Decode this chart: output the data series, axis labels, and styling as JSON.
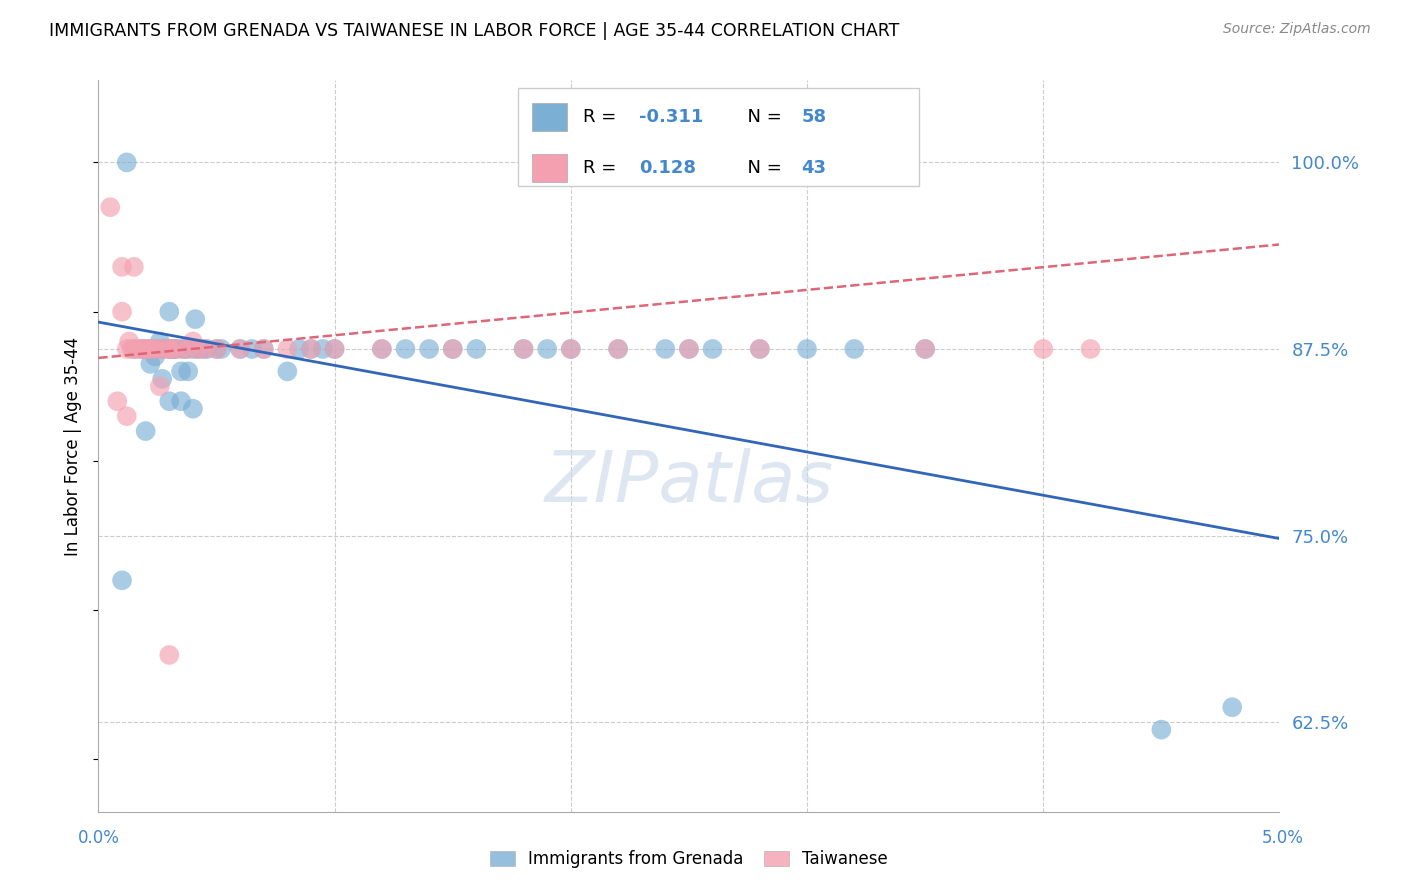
{
  "title": "IMMIGRANTS FROM GRENADA VS TAIWANESE IN LABOR FORCE | AGE 35-44 CORRELATION CHART",
  "source": "Source: ZipAtlas.com",
  "ylabel": "In Labor Force | Age 35-44",
  "yticks": [
    0.625,
    0.75,
    0.875,
    1.0
  ],
  "ytick_labels": [
    "62.5%",
    "75.0%",
    "87.5%",
    "100.0%"
  ],
  "xlim": [
    0.0,
    0.05
  ],
  "ylim": [
    0.565,
    1.055
  ],
  "color_blue": "#7BAFD4",
  "color_pink": "#F4A0B0",
  "color_blue_line": "#3366BB",
  "color_pink_line": "#DD6677",
  "color_axis_label": "#4488CC",
  "color_grid": "#CCCCCC",
  "blue_x": [
    0.0012,
    0.0015,
    0.0018,
    0.002,
    0.0022,
    0.0022,
    0.0024,
    0.0025,
    0.0026,
    0.0028,
    0.003,
    0.003,
    0.0031,
    0.0032,
    0.0033,
    0.0035,
    0.0036,
    0.0037,
    0.004,
    0.0041,
    0.0042,
    0.0044,
    0.0046,
    0.005,
    0.0052,
    0.006,
    0.0065,
    0.007,
    0.008,
    0.009,
    0.0095,
    0.01,
    0.012,
    0.013,
    0.014,
    0.015,
    0.016,
    0.018,
    0.019,
    0.02,
    0.022,
    0.024,
    0.025,
    0.026,
    0.028,
    0.03,
    0.032,
    0.035,
    0.001,
    0.002,
    0.003,
    0.0035,
    0.004,
    0.0085,
    0.045,
    0.048,
    0.0027,
    0.0038
  ],
  "blue_y": [
    1.0,
    0.875,
    0.875,
    0.875,
    0.875,
    0.865,
    0.87,
    0.875,
    0.88,
    0.875,
    0.875,
    0.9,
    0.875,
    0.875,
    0.875,
    0.86,
    0.875,
    0.875,
    0.875,
    0.895,
    0.875,
    0.875,
    0.875,
    0.875,
    0.875,
    0.875,
    0.875,
    0.875,
    0.86,
    0.875,
    0.875,
    0.875,
    0.875,
    0.875,
    0.875,
    0.875,
    0.875,
    0.875,
    0.875,
    0.875,
    0.875,
    0.875,
    0.875,
    0.875,
    0.875,
    0.875,
    0.875,
    0.875,
    0.72,
    0.82,
    0.84,
    0.84,
    0.835,
    0.875,
    0.62,
    0.635,
    0.855,
    0.86
  ],
  "pink_x": [
    0.0005,
    0.001,
    0.001,
    0.0012,
    0.0013,
    0.0014,
    0.0015,
    0.0016,
    0.0018,
    0.002,
    0.002,
    0.0022,
    0.0023,
    0.0025,
    0.0026,
    0.0027,
    0.003,
    0.003,
    0.0032,
    0.0035,
    0.0038,
    0.004,
    0.0042,
    0.0045,
    0.005,
    0.006,
    0.007,
    0.008,
    0.009,
    0.01,
    0.012,
    0.015,
    0.018,
    0.02,
    0.022,
    0.025,
    0.028,
    0.035,
    0.04,
    0.042,
    0.0008,
    0.0012,
    0.003
  ],
  "pink_y": [
    0.97,
    0.9,
    0.93,
    0.875,
    0.88,
    0.875,
    0.93,
    0.875,
    0.875,
    0.875,
    0.875,
    0.875,
    0.875,
    0.875,
    0.85,
    0.875,
    0.875,
    0.875,
    0.875,
    0.875,
    0.875,
    0.88,
    0.875,
    0.875,
    0.875,
    0.875,
    0.875,
    0.875,
    0.875,
    0.875,
    0.875,
    0.875,
    0.875,
    0.875,
    0.875,
    0.875,
    0.875,
    0.875,
    0.875,
    0.875,
    0.84,
    0.83,
    0.67
  ],
  "blue_line_x": [
    0.0,
    0.05
  ],
  "blue_line_y": [
    0.893,
    0.748
  ],
  "pink_line_x": [
    0.0,
    0.05
  ],
  "pink_line_y": [
    0.869,
    0.945
  ]
}
